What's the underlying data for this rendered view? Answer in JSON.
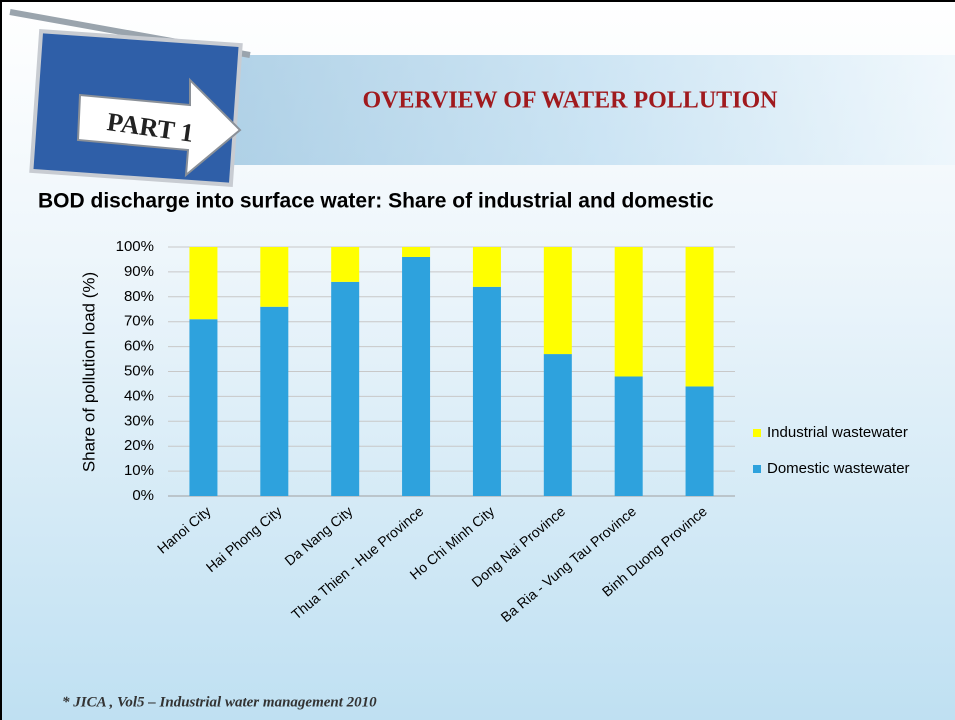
{
  "slide": {
    "badge": "PART 1",
    "heading": "OVERVIEW OF WATER POLLUTION",
    "footnote": "* JICA , Vol5 – Industrial water management 2010"
  },
  "chart_data": {
    "type": "stacked_bar",
    "title": "BOD discharge into surface water: Share of industrial and domestic",
    "y_label": "Share of pollution load (%)",
    "categories": [
      "Hanoi City",
      "Hai Phong City",
      "Da Nang City",
      "Thua Thien - Hue Province",
      "Ho Chi Minh City",
      "Dong Nai Province",
      "Ba Ria - Vung Tau Province",
      "Binh Duong Province"
    ],
    "series": [
      {
        "name": "Domestic wastewater",
        "color": "#2ea2dd",
        "values": [
          71,
          76,
          86,
          96,
          84,
          57,
          48,
          44
        ]
      },
      {
        "name": "Industrial wastewater",
        "color": "#ffff00",
        "values": [
          29,
          24,
          14,
          4,
          16,
          43,
          52,
          56
        ]
      }
    ],
    "ylim": [
      0,
      100
    ],
    "yticks": [
      {
        "value": 0,
        "label": "0%"
      },
      {
        "value": 10,
        "label": "10%"
      },
      {
        "value": 20,
        "label": "20%"
      },
      {
        "value": 30,
        "label": "30%"
      },
      {
        "value": 40,
        "label": "40%"
      },
      {
        "value": 50,
        "label": "50%"
      },
      {
        "value": 60,
        "label": "60%"
      },
      {
        "value": 70,
        "label": "70%"
      },
      {
        "value": 80,
        "label": "80%"
      },
      {
        "value": 90,
        "label": "90%"
      },
      {
        "value": 100,
        "label": "100%"
      }
    ],
    "grid": true,
    "legend": "right"
  }
}
